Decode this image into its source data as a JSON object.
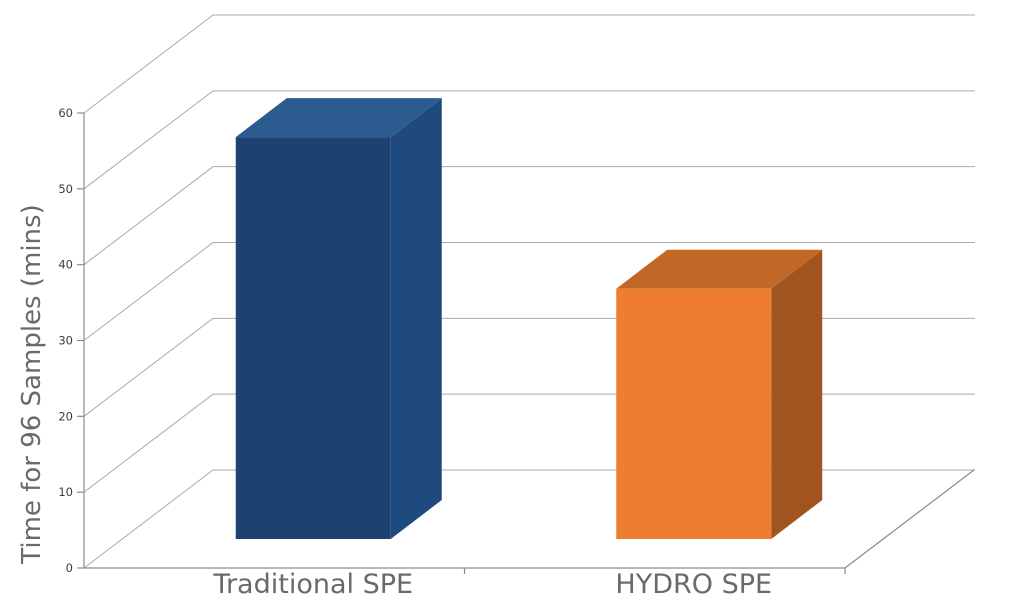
{
  "chart_data": {
    "type": "bar",
    "projection": "3d-oblique",
    "title": "",
    "xlabel": "",
    "ylabel": "Time for 96 Samples (mins)",
    "categories": [
      "Traditional SPE",
      "HYDRO SPE"
    ],
    "values": [
      53,
      33
    ],
    "ylim": [
      0,
      60
    ],
    "yticks": [
      0,
      10,
      20,
      30,
      40,
      50,
      60
    ],
    "grid": true,
    "legend": false,
    "bar_colors": [
      {
        "name": "blue",
        "front": "#1D4170",
        "top": "#2C5B8F",
        "side": "#1F4A7E"
      },
      {
        "name": "orange",
        "front": "#EE7D2F",
        "top": "#C16827",
        "side": "#A0551F"
      }
    ],
    "gridline_color": "#ABABAB",
    "axis_color": "#8C8C8C",
    "tick_label_color": "#3D3D3D",
    "category_label_color": "#6A6A6A",
    "ylabel_color": "#6A6A6A",
    "background_color": "#FFFFFF"
  }
}
